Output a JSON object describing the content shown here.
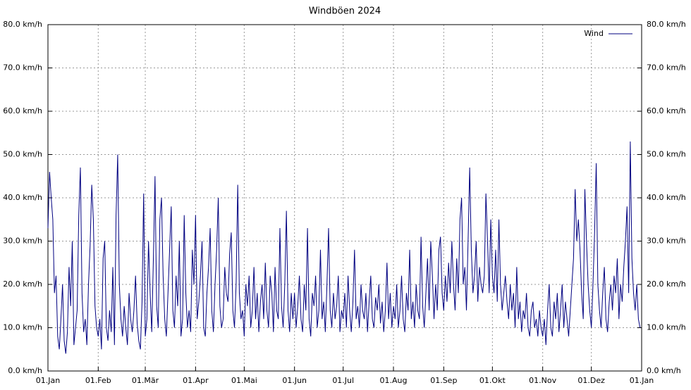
{
  "chart_data": {
    "type": "line",
    "title": "Windböen 2024",
    "x": [
      0,
      1,
      2,
      3,
      4,
      5,
      6,
      7,
      8,
      9,
      10,
      11,
      12,
      13,
      14,
      15,
      16,
      17,
      18,
      19,
      20,
      21,
      22,
      23,
      24,
      25,
      26,
      27,
      28,
      29,
      30,
      31,
      32,
      33,
      34,
      35,
      36,
      37,
      38,
      39,
      40,
      41,
      42,
      43,
      44,
      45,
      46,
      47,
      48,
      49,
      50,
      51,
      52,
      53,
      54,
      55,
      56,
      57,
      58,
      59,
      60,
      61,
      62,
      63,
      64,
      65,
      66,
      67,
      68,
      69,
      70,
      71,
      72,
      73,
      74,
      75,
      76,
      77,
      78,
      79,
      80,
      81,
      82,
      83,
      84,
      85,
      86,
      87,
      88,
      89,
      90,
      91,
      92,
      93,
      94,
      95,
      96,
      97,
      98,
      99,
      100,
      101,
      102,
      103,
      104,
      105,
      106,
      107,
      108,
      109,
      110,
      111,
      112,
      113,
      114,
      115,
      116,
      117,
      118,
      119,
      120,
      121,
      122,
      123,
      124,
      125,
      126,
      127,
      128,
      129,
      130,
      131,
      132,
      133,
      134,
      135,
      136,
      137,
      138,
      139,
      140,
      141,
      142,
      143,
      144,
      145,
      146,
      147,
      148,
      149,
      150,
      151,
      152,
      153,
      154,
      155,
      156,
      157,
      158,
      159,
      160,
      161,
      162,
      163,
      164,
      165,
      166,
      167,
      168,
      169,
      170,
      171,
      172,
      173,
      174,
      175,
      176,
      177,
      178,
      179,
      180,
      181,
      182,
      183,
      184,
      185,
      186,
      187,
      188,
      189,
      190,
      191,
      192,
      193,
      194,
      195,
      196,
      197,
      198,
      199,
      200,
      201,
      202,
      203,
      204,
      205,
      206,
      207,
      208,
      209,
      210,
      211,
      212,
      213,
      214,
      215,
      216,
      217,
      218,
      219,
      220,
      221,
      222,
      223,
      224,
      225,
      226,
      227,
      228,
      229,
      230,
      231,
      232,
      233,
      234,
      235,
      236,
      237,
      238,
      239,
      240,
      241,
      242,
      243,
      244,
      245,
      246,
      247,
      248,
      249,
      250,
      251,
      252,
      253,
      254,
      255,
      256,
      257,
      258,
      259,
      260,
      261,
      262,
      263,
      264,
      265,
      266,
      267,
      268,
      269,
      270,
      271,
      272,
      273,
      274,
      275,
      276,
      277,
      278,
      279,
      280,
      281,
      282,
      283,
      284,
      285,
      286,
      287,
      288,
      289,
      290,
      291,
      292,
      293,
      294,
      295,
      296,
      297,
      298,
      299,
      300,
      301,
      302,
      303,
      304,
      305,
      306,
      307,
      308,
      309,
      310,
      311,
      312,
      313,
      314,
      315,
      316,
      317,
      318,
      319,
      320,
      321,
      322,
      323,
      324,
      325,
      326,
      327,
      328,
      329,
      330,
      331,
      332,
      333,
      334,
      335,
      336,
      337,
      338,
      339,
      340,
      341,
      342,
      343,
      344,
      345,
      346,
      347,
      348,
      349,
      350,
      351,
      352,
      353,
      354,
      355,
      356,
      357,
      358,
      359,
      360,
      361,
      362,
      363,
      364,
      365
    ],
    "series": [
      {
        "name": "Wind",
        "color": "#000080",
        "values": [
          33,
          46,
          40,
          35,
          18,
          22,
          8,
          5,
          12,
          20,
          7,
          4,
          9,
          24,
          15,
          30,
          6,
          10,
          14,
          36,
          47,
          18,
          9,
          12,
          6,
          20,
          29,
          43,
          35,
          15,
          10,
          8,
          12,
          5,
          26,
          30,
          10,
          7,
          14,
          9,
          24,
          6,
          36,
          50,
          20,
          12,
          8,
          15,
          10,
          6,
          18,
          12,
          9,
          14,
          22,
          11,
          7,
          5,
          16,
          41,
          8,
          12,
          30,
          18,
          9,
          26,
          45,
          15,
          10,
          35,
          40,
          22,
          12,
          8,
          18,
          28,
          38,
          14,
          10,
          22,
          15,
          30,
          8,
          12,
          36,
          18,
          10,
          14,
          9,
          28,
          20,
          36,
          12,
          16,
          22,
          30,
          10,
          8,
          18,
          24,
          33,
          14,
          9,
          20,
          28,
          40,
          15,
          10,
          12,
          24,
          18,
          16,
          27,
          32,
          14,
          10,
          20,
          43,
          18,
          12,
          14,
          8,
          20,
          15,
          22,
          10,
          14,
          24,
          12,
          18,
          9,
          16,
          20,
          12,
          25,
          14,
          10,
          22,
          18,
          9,
          24,
          14,
          12,
          33,
          15,
          10,
          20,
          37,
          14,
          9,
          18,
          12,
          18,
          10,
          15,
          22,
          12,
          9,
          20,
          14,
          33,
          12,
          8,
          18,
          15,
          22,
          10,
          14,
          28,
          12,
          16,
          9,
          20,
          33,
          14,
          10,
          18,
          12,
          15,
          22,
          9,
          14,
          12,
          18,
          10,
          22,
          14,
          9,
          16,
          28,
          12,
          15,
          10,
          20,
          14,
          12,
          18,
          9,
          16,
          22,
          12,
          10,
          17,
          14,
          20,
          11,
          16,
          9,
          14,
          25,
          12,
          18,
          10,
          15,
          12,
          20,
          10,
          14,
          22,
          12,
          9,
          18,
          14,
          28,
          12,
          16,
          10,
          20,
          14,
          12,
          31,
          15,
          10,
          18,
          26,
          14,
          30,
          22,
          12,
          20,
          14,
          28,
          31,
          18,
          14,
          22,
          16,
          25,
          18,
          30,
          20,
          14,
          26,
          18,
          35,
          40,
          20,
          24,
          14,
          30,
          47,
          28,
          18,
          22,
          30,
          16,
          24,
          20,
          18,
          22,
          41,
          30,
          18,
          35,
          22,
          18,
          28,
          16,
          35,
          20,
          14,
          18,
          22,
          16,
          12,
          20,
          14,
          18,
          10,
          24,
          12,
          16,
          9,
          14,
          12,
          18,
          10,
          8,
          14,
          16,
          10,
          12,
          8,
          14,
          10,
          8,
          12,
          6,
          14,
          20,
          10,
          8,
          16,
          12,
          18,
          9,
          14,
          20,
          10,
          16,
          12,
          8,
          14,
          20,
          26,
          42,
          30,
          35,
          28,
          18,
          12,
          42,
          30,
          20,
          14,
          10,
          20,
          32,
          48,
          20,
          14,
          10,
          18,
          24,
          12,
          9,
          16,
          20,
          14,
          22,
          18,
          26,
          12,
          20,
          16,
          24,
          30,
          38,
          18,
          53,
          26,
          18,
          14,
          20,
          12,
          10
        ]
      }
    ],
    "xlim": [
      0,
      366
    ],
    "xticks": [
      {
        "value": 0,
        "label": "01.Jan"
      },
      {
        "value": 31,
        "label": "01.Feb"
      },
      {
        "value": 60,
        "label": "01.Mär"
      },
      {
        "value": 91,
        "label": "01.Apr"
      },
      {
        "value": 121,
        "label": "01.Mai"
      },
      {
        "value": 152,
        "label": "01.Jun"
      },
      {
        "value": 182,
        "label": "01.Jul"
      },
      {
        "value": 213,
        "label": "01.Aug"
      },
      {
        "value": 244,
        "label": "01.Sep"
      },
      {
        "value": 274,
        "label": "01.Okt"
      },
      {
        "value": 305,
        "label": "01.Nov"
      },
      {
        "value": 335,
        "label": "01.Dez"
      },
      {
        "value": 366,
        "label": "01.Jan"
      }
    ],
    "ylim": [
      0,
      80
    ],
    "yticks": [
      {
        "value": 0,
        "label": "0.0 km/h"
      },
      {
        "value": 10,
        "label": "10.0 km/h"
      },
      {
        "value": 20,
        "label": "20.0 km/h"
      },
      {
        "value": 30,
        "label": "30.0 km/h"
      },
      {
        "value": 40,
        "label": "40.0 km/h"
      },
      {
        "value": 50,
        "label": "50.0 km/h"
      },
      {
        "value": 60,
        "label": "60.0 km/h"
      },
      {
        "value": 70,
        "label": "70.0 km/h"
      },
      {
        "value": 80,
        "label": "80.0 km/h"
      }
    ],
    "grid": true,
    "legend": "top-right"
  }
}
